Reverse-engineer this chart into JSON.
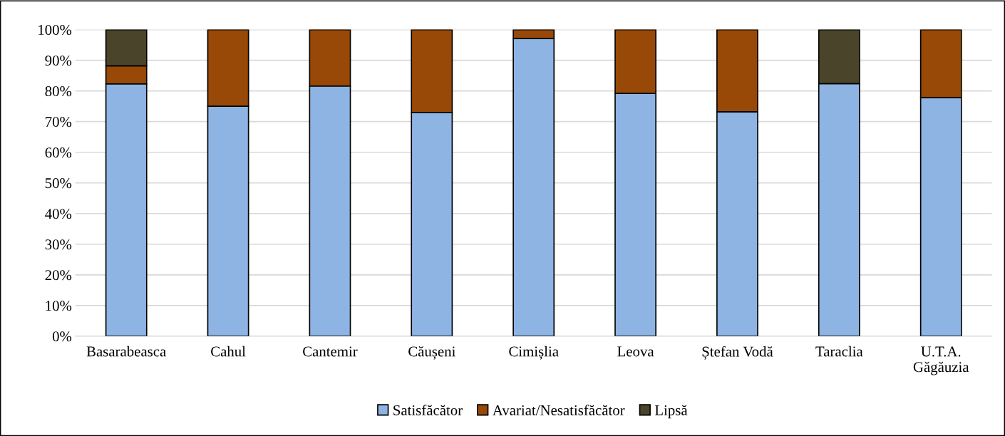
{
  "chart_data": {
    "type": "bar",
    "stacked": true,
    "categories": [
      "Basarabeasca",
      "Cahul",
      "Cantemir",
      "Căușeni",
      "Cimișlia",
      "Leova",
      "Ștefan Vodă",
      "Taraclia",
      "U.T.A. Găgăuzia"
    ],
    "series": [
      {
        "name": "Satisfăcător",
        "color": "#8eb4e3",
        "values": [
          82.3,
          75,
          81.6,
          73,
          97.1,
          79.2,
          73.2,
          82.4,
          77.8
        ]
      },
      {
        "name": "Avariat/Nesatisfăcător",
        "color": "#984807",
        "values": [
          5.9,
          25,
          18.4,
          27,
          2.9,
          20.8,
          26.8,
          null,
          22.2
        ]
      },
      {
        "name": "Lipsă",
        "color": "#4a452a",
        "values": [
          11.8,
          null,
          null,
          null,
          null,
          null,
          null,
          17.6,
          null
        ]
      }
    ],
    "ylim": [
      0,
      100
    ],
    "yticks": [
      {
        "value": 0,
        "label": "0%"
      },
      {
        "value": 10,
        "label": "10%"
      },
      {
        "value": 20,
        "label": "20%"
      },
      {
        "value": 30,
        "label": "30%"
      },
      {
        "value": 40,
        "label": "40%"
      },
      {
        "value": 50,
        "label": "50%"
      },
      {
        "value": 60,
        "label": "60%"
      },
      {
        "value": 70,
        "label": "70%"
      },
      {
        "value": 80,
        "label": "80%"
      },
      {
        "value": 90,
        "label": "90%"
      },
      {
        "value": 100,
        "label": "100%"
      }
    ],
    "grid": "y",
    "legend": "bottom"
  }
}
